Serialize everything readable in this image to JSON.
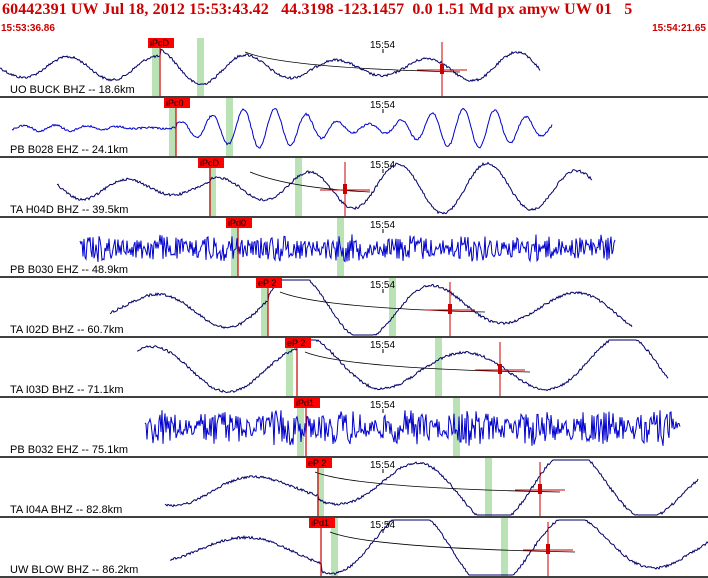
{
  "header": {
    "event_line": "60442391 UW Jul 18, 2012 15:53:43.42   44.3198 -123.1457  0.0 1.51 Md px amyw UW 01   5",
    "start_time": "15:53:36.86",
    "end_time": "15:54:21.65"
  },
  "colors": {
    "header_text": "#cc0000",
    "pick_box": "#ff0000",
    "pick_line": "#cc0000",
    "green_band": "#b9e3b4",
    "trace_black": "#000066",
    "trace_blue": "#0000cc",
    "separator": "#000000"
  },
  "time_tick_label": "15:54",
  "traces": [
    {
      "station_label": "UO BUCK BHZ -- 18.6km",
      "pick_label": "iPcD",
      "color": "blue_dark",
      "style": "wave"
    },
    {
      "station_label": "PB B028 EHZ -- 24.1km",
      "pick_label": "iPc0",
      "color": "blue",
      "style": "wave"
    },
    {
      "station_label": "TA H04D BHZ -- 39.5km",
      "pick_label": "iPcD",
      "color": "blue_dark",
      "style": "wave"
    },
    {
      "station_label": "PB B030 EHZ -- 48.9km",
      "pick_label": "iPd0",
      "color": "blue",
      "style": "noise"
    },
    {
      "station_label": "TA I02D BHZ -- 60.7km",
      "pick_label": "eP 2",
      "color": "blue_dark",
      "style": "wave"
    },
    {
      "station_label": "TA I03D BHZ -- 71.1km",
      "pick_label": "eP 2",
      "color": "blue_dark",
      "style": "wave"
    },
    {
      "station_label": "PB B032 EHZ -- 75.1km",
      "pick_label": "iPd1",
      "color": "blue",
      "style": "noise"
    },
    {
      "station_label": "TA I04A BHZ -- 82.8km",
      "pick_label": "eP 2",
      "color": "blue_dark",
      "style": "wave"
    },
    {
      "station_label": "UW BLOW BHZ -- 86.2km",
      "pick_label": "iPd1",
      "color": "blue_dark",
      "style": "wave"
    }
  ]
}
